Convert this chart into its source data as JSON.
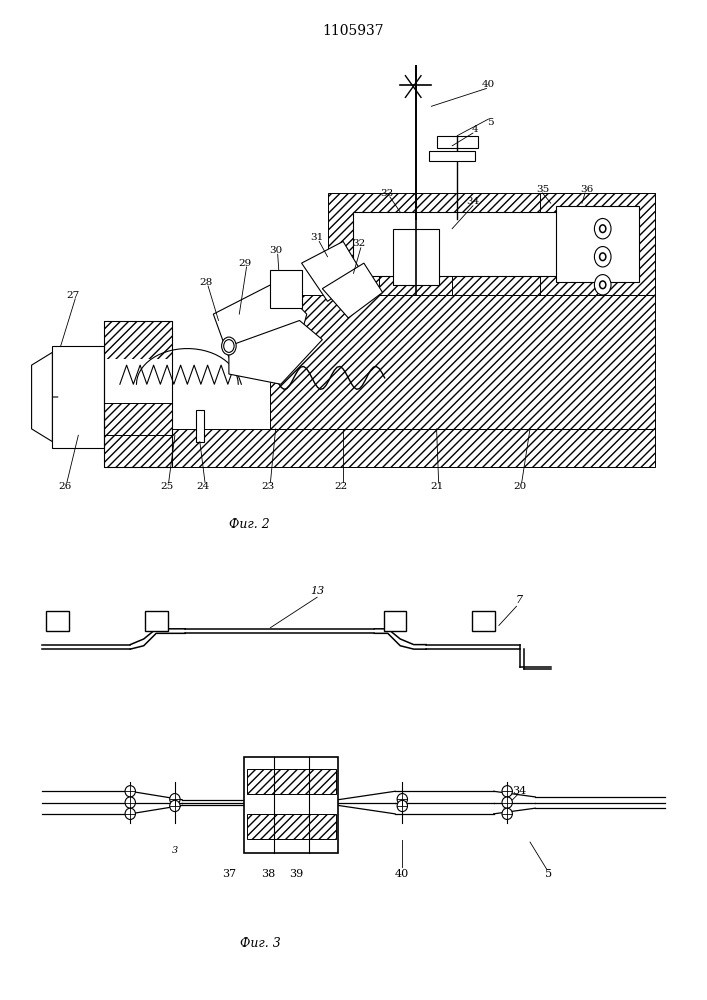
{
  "title": "1105937",
  "fig2_caption": "Фиг. 2",
  "fig3_caption": "Фиг. 3",
  "bg_color": "#ffffff",
  "line_color": "#000000",
  "fig_width": 7.07,
  "fig_height": 10.0,
  "dpi": 100
}
